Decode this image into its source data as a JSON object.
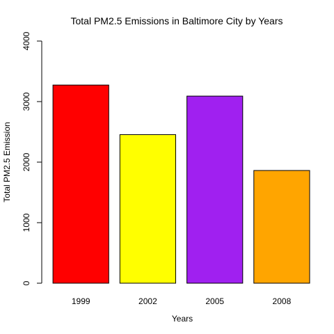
{
  "chart_data": {
    "type": "bar",
    "title": "Total PM2.5 Emissions in Baltimore City by Years",
    "xlabel": "Years",
    "ylabel": "Total PM2.5 Emission",
    "categories": [
      "1999",
      "2002",
      "2005",
      "2008"
    ],
    "values": [
      3274,
      2454,
      3091,
      1862
    ],
    "colors": [
      "#ff0000",
      "#ffff00",
      "#a020f0",
      "#ffa500"
    ],
    "ylim": [
      0,
      4000
    ],
    "yticks": [
      0,
      1000,
      2000,
      3000,
      4000
    ],
    "grid": false
  }
}
